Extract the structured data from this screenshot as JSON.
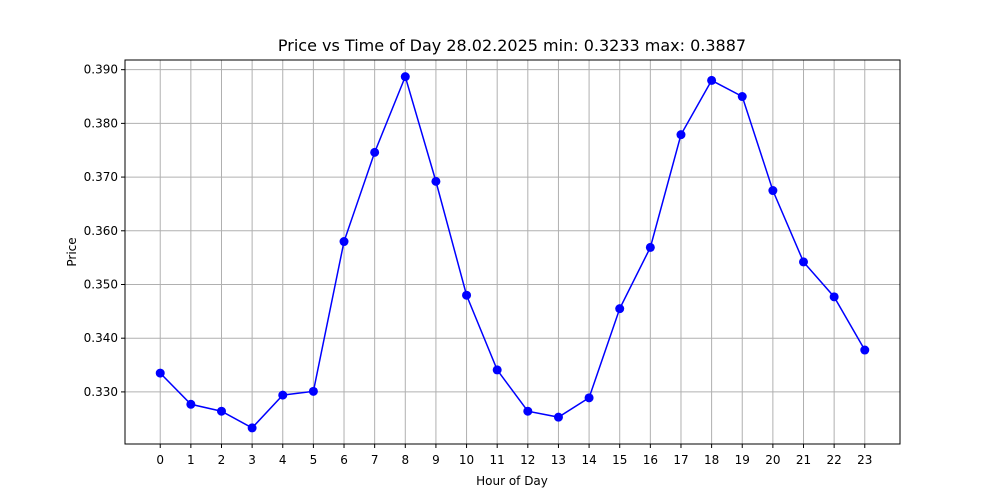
{
  "chart_data": {
    "type": "line",
    "title": "Price vs Time of Day 28.02.2025 min: 0.3233 max: 0.3887",
    "xlabel": "Hour of Day",
    "ylabel": "Price",
    "x": [
      0,
      1,
      2,
      3,
      4,
      5,
      6,
      7,
      8,
      9,
      10,
      11,
      12,
      13,
      14,
      15,
      16,
      17,
      18,
      19,
      20,
      21,
      22,
      23
    ],
    "x_tick_labels": [
      "0",
      "1",
      "2",
      "3",
      "4",
      "5",
      "6",
      "7",
      "8",
      "9",
      "10",
      "11",
      "12",
      "13",
      "14",
      "15",
      "16",
      "17",
      "18",
      "19",
      "20",
      "21",
      "22",
      "23"
    ],
    "y_tick_labels": [
      "0.330",
      "0.340",
      "0.350",
      "0.360",
      "0.370",
      "0.380",
      "0.390"
    ],
    "y_ticks": [
      0.33,
      0.34,
      0.35,
      0.36,
      0.37,
      0.38,
      0.39
    ],
    "xlim": [
      -1.15,
      24.15
    ],
    "ylim": [
      0.3203,
      0.3918
    ],
    "grid": true,
    "series": [
      {
        "color": "#0000ff",
        "marker": "circle",
        "values": [
          0.3335,
          0.3277,
          0.3264,
          0.3233,
          0.3294,
          0.3301,
          0.358,
          0.3746,
          0.3887,
          0.3692,
          0.348,
          0.3341,
          0.3264,
          0.3253,
          0.3289,
          0.3455,
          0.3569,
          0.3779,
          0.388,
          0.385,
          0.3675,
          0.3542,
          0.3477,
          0.3378
        ]
      }
    ]
  }
}
